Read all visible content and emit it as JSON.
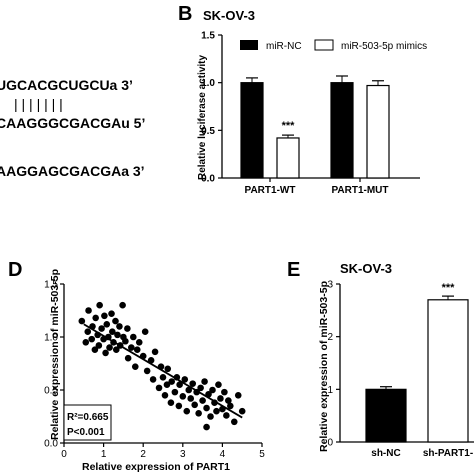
{
  "panels": {
    "b": {
      "letter": "B",
      "title": "SK-OV-3"
    },
    "d": {
      "letter": "D"
    },
    "e": {
      "letter": "E",
      "title": "SK-OV-3"
    }
  },
  "sequences": {
    "line1": "UGCACGCUGCUa 3’",
    "pairs": "| | | | | | |",
    "line2": "CAAGGGCGACGAu 5’",
    "line3": "AAGGAGCGACGAa 3’"
  },
  "chart_data": [
    {
      "panel": "B",
      "type": "bar",
      "title": "SK-OV-3",
      "ylabel": "Relative luciferase activity",
      "ylim": [
        0,
        1.5
      ],
      "yticks": [
        "0.0",
        "0.5",
        "1.0",
        "1.5"
      ],
      "categories": [
        "PART1-WT",
        "PART1-MUT"
      ],
      "series": [
        {
          "name": "miR-NC",
          "color": "#000000",
          "values": [
            1.0,
            1.0
          ],
          "errors": [
            0.05,
            0.07
          ]
        },
        {
          "name": "miR-503-5p mimics",
          "color": "#ffffff",
          "values": [
            0.42,
            0.97
          ],
          "errors": [
            0.03,
            0.05
          ]
        }
      ],
      "annotations": [
        {
          "category": "PART1-WT",
          "series": 1,
          "text": "***"
        }
      ],
      "legend": "top-right"
    },
    {
      "panel": "D",
      "type": "scatter",
      "xlabel": "Relative expression of PART1",
      "ylabel": "Relative expression of miR-503-5p",
      "xlim": [
        0,
        5
      ],
      "ylim": [
        0,
        1.5
      ],
      "xticks": [
        "0",
        "1",
        "2",
        "3",
        "4",
        "5"
      ],
      "yticks": [
        "0.0",
        "0.5",
        "1.0",
        "1.5"
      ],
      "stats": {
        "r2": "R²=0.665",
        "p": "P<0.001"
      },
      "fit": {
        "x": [
          0.5,
          4.5
        ],
        "y": [
          1.12,
          0.24
        ]
      },
      "points": [
        [
          0.45,
          1.15
        ],
        [
          0.55,
          0.95
        ],
        [
          0.6,
          1.05
        ],
        [
          0.62,
          1.25
        ],
        [
          0.7,
          0.98
        ],
        [
          0.72,
          1.1
        ],
        [
          0.78,
          0.88
        ],
        [
          0.8,
          1.18
        ],
        [
          0.85,
          1.02
        ],
        [
          0.88,
          0.92
        ],
        [
          0.9,
          1.3
        ],
        [
          0.95,
          1.08
        ],
        [
          1.0,
          0.98
        ],
        [
          1.02,
          1.2
        ],
        [
          1.05,
          0.85
        ],
        [
          1.08,
          1.12
        ],
        [
          1.12,
          1.0
        ],
        [
          1.15,
          0.9
        ],
        [
          1.2,
          1.22
        ],
        [
          1.22,
          1.05
        ],
        [
          1.25,
          0.95
        ],
        [
          1.3,
          1.15
        ],
        [
          1.32,
          0.88
        ],
        [
          1.35,
          1.02
        ],
        [
          1.4,
          1.1
        ],
        [
          1.42,
          0.92
        ],
        [
          1.48,
          1.3
        ],
        [
          1.5,
          1.0
        ],
        [
          1.55,
          0.96
        ],
        [
          1.6,
          1.08
        ],
        [
          1.62,
          0.8
        ],
        [
          1.7,
          0.9
        ],
        [
          1.75,
          1.0
        ],
        [
          1.8,
          0.72
        ],
        [
          1.85,
          0.88
        ],
        [
          1.9,
          0.95
        ],
        [
          2.0,
          0.82
        ],
        [
          2.05,
          1.05
        ],
        [
          2.1,
          0.68
        ],
        [
          2.2,
          0.78
        ],
        [
          2.25,
          0.6
        ],
        [
          2.3,
          0.86
        ],
        [
          2.4,
          0.52
        ],
        [
          2.5,
          0.62
        ],
        [
          2.55,
          0.45
        ],
        [
          2.6,
          0.55
        ],
        [
          2.62,
          0.7
        ],
        [
          2.7,
          0.38
        ],
        [
          2.72,
          0.58
        ],
        [
          2.8,
          0.48
        ],
        [
          2.85,
          0.62
        ],
        [
          2.9,
          0.35
        ],
        [
          2.92,
          0.55
        ],
        [
          3.0,
          0.44
        ],
        [
          3.05,
          0.6
        ],
        [
          3.1,
          0.3
        ],
        [
          3.15,
          0.5
        ],
        [
          3.2,
          0.42
        ],
        [
          3.25,
          0.56
        ],
        [
          3.3,
          0.36
        ],
        [
          3.35,
          0.48
        ],
        [
          3.4,
          0.28
        ],
        [
          3.45,
          0.52
        ],
        [
          3.5,
          0.4
        ],
        [
          3.55,
          0.58
        ],
        [
          3.6,
          0.33
        ],
        [
          3.65,
          0.46
        ],
        [
          3.7,
          0.25
        ],
        [
          3.75,
          0.5
        ],
        [
          3.8,
          0.38
        ],
        [
          3.85,
          0.3
        ],
        [
          3.9,
          0.55
        ],
        [
          3.95,
          0.42
        ],
        [
          4.0,
          0.32
        ],
        [
          4.05,
          0.48
        ],
        [
          4.1,
          0.26
        ],
        [
          4.15,
          0.4
        ],
        [
          4.2,
          0.35
        ],
        [
          4.3,
          0.2
        ],
        [
          4.4,
          0.45
        ],
        [
          4.5,
          0.3
        ],
        [
          2.45,
          0.72
        ],
        [
          3.6,
          0.15
        ]
      ]
    },
    {
      "panel": "E",
      "type": "bar",
      "title": "SK-OV-3",
      "ylabel": "Relative expression of miR-503-5p",
      "ylim": [
        0,
        3
      ],
      "yticks": [
        "0",
        "1",
        "2",
        "3"
      ],
      "categories": [
        "sh-NC",
        "sh-PART1-"
      ],
      "values": [
        1.0,
        2.7
      ],
      "errors": [
        0.05,
        0.07
      ],
      "colors": [
        "#000000",
        "#ffffff"
      ],
      "annotations": [
        {
          "category": "sh-PART1-",
          "text": "***"
        }
      ]
    }
  ]
}
